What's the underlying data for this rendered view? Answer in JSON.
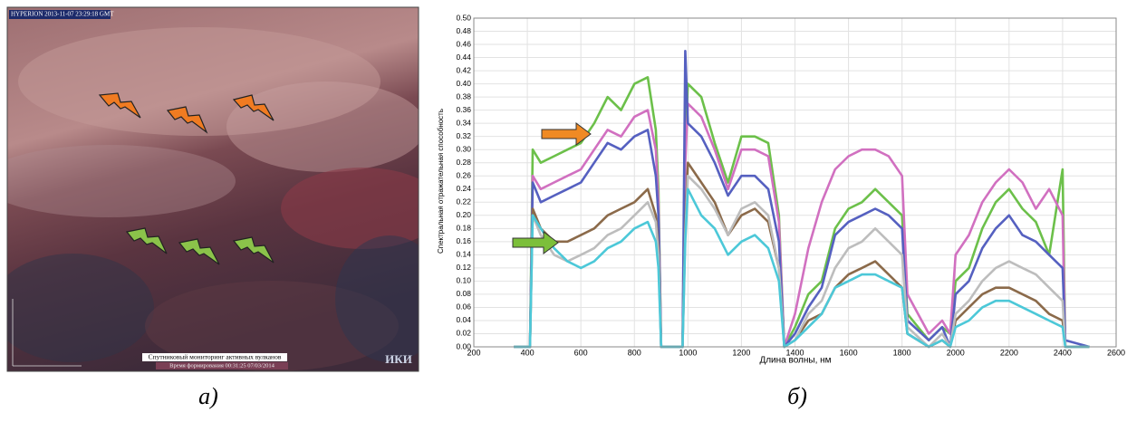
{
  "image_panel": {
    "header": "HYPERION 2013-11-07 23:29:18 GMT",
    "footer_title": "Спутниковый мониторинг активных вулканов",
    "footer_time": "Время формирования 00:31:25 07/03/2014",
    "logo": "ИКИ",
    "caption": "а)"
  },
  "chart_caption": "б)",
  "chart_data": {
    "type": "line",
    "xlabel": "Длина волны, нм",
    "ylabel": "Спектральная отражательная способность",
    "xlim": [
      200,
      2600
    ],
    "xticks": [
      200,
      400,
      600,
      800,
      1000,
      1200,
      1400,
      1600,
      1800,
      2000,
      2200,
      2400,
      2600
    ],
    "ylim": [
      0,
      0.5
    ],
    "yticks": [
      {
        "value": 0,
        "label": "0.00"
      },
      {
        "value": 0.02,
        "label": "0.02"
      },
      {
        "value": 0.04,
        "label": "0.04"
      },
      {
        "value": 0.06,
        "label": "0.06"
      },
      {
        "value": 0.08,
        "label": "0.08"
      },
      {
        "value": 0.1,
        "label": "0.10"
      },
      {
        "value": 0.12,
        "label": "0.12"
      },
      {
        "value": 0.14,
        "label": "0.14"
      },
      {
        "value": 0.16,
        "label": "0.16"
      },
      {
        "value": 0.18,
        "label": "0.18"
      },
      {
        "value": 0.2,
        "label": "0.20"
      },
      {
        "value": 0.22,
        "label": "0.22"
      },
      {
        "value": 0.24,
        "label": "0.24"
      },
      {
        "value": 0.26,
        "label": "0.26"
      },
      {
        "value": 0.28,
        "label": "0.28"
      },
      {
        "value": 0.3,
        "label": "0.30"
      },
      {
        "value": 0.32,
        "label": "0.32"
      },
      {
        "value": 0.34,
        "label": "0.34"
      },
      {
        "value": 0.36,
        "label": "0.36"
      },
      {
        "value": 0.38,
        "label": "0.38"
      },
      {
        "value": 0.4,
        "label": "0.40"
      },
      {
        "value": 0.42,
        "label": "0.42"
      },
      {
        "value": 0.44,
        "label": "0.44"
      },
      {
        "value": 0.46,
        "label": "0.46"
      },
      {
        "value": 0.48,
        "label": "0.48"
      },
      {
        "value": 0.5,
        "label": "0.50"
      }
    ],
    "grid": true,
    "x": [
      350,
      410,
      420,
      450,
      500,
      550,
      600,
      650,
      700,
      750,
      800,
      850,
      880,
      890,
      900,
      980,
      990,
      1000,
      1050,
      1100,
      1150,
      1200,
      1250,
      1300,
      1340,
      1360,
      1400,
      1450,
      1500,
      1550,
      1600,
      1650,
      1700,
      1750,
      1800,
      1820,
      1900,
      1950,
      1980,
      2000,
      2050,
      2100,
      2150,
      2200,
      2250,
      2300,
      2350,
      2400,
      2410,
      2500
    ],
    "series": [
      {
        "color": "#6cc04a",
        "values": [
          0,
          0,
          0.3,
          0.28,
          0.29,
          0.3,
          0.31,
          0.34,
          0.38,
          0.36,
          0.4,
          0.41,
          0.33,
          0.24,
          0,
          0,
          0.3,
          0.4,
          0.38,
          0.31,
          0.25,
          0.32,
          0.32,
          0.31,
          0.2,
          0,
          0.03,
          0.08,
          0.1,
          0.18,
          0.21,
          0.22,
          0.24,
          0.22,
          0.2,
          0.05,
          0.01,
          0.03,
          0.02,
          0.1,
          0.12,
          0.18,
          0.22,
          0.24,
          0.21,
          0.19,
          0.14,
          0.27,
          0,
          0
        ]
      },
      {
        "color": "#d170c0",
        "values": [
          0,
          0,
          0.26,
          0.24,
          0.25,
          0.26,
          0.27,
          0.3,
          0.33,
          0.32,
          0.35,
          0.36,
          0.3,
          0.22,
          0,
          0,
          0.28,
          0.37,
          0.35,
          0.3,
          0.24,
          0.3,
          0.3,
          0.29,
          0.19,
          0,
          0.05,
          0.15,
          0.22,
          0.27,
          0.29,
          0.3,
          0.3,
          0.29,
          0.26,
          0.08,
          0.02,
          0.04,
          0.02,
          0.14,
          0.17,
          0.22,
          0.25,
          0.27,
          0.25,
          0.21,
          0.24,
          0.2,
          0,
          0
        ]
      },
      {
        "color": "#5560c0",
        "values": [
          0,
          0,
          0.25,
          0.22,
          0.23,
          0.24,
          0.25,
          0.28,
          0.31,
          0.3,
          0.32,
          0.33,
          0.26,
          0.2,
          0,
          0,
          0.45,
          0.34,
          0.32,
          0.28,
          0.23,
          0.26,
          0.26,
          0.24,
          0.16,
          0,
          0.02,
          0.06,
          0.09,
          0.17,
          0.19,
          0.2,
          0.21,
          0.2,
          0.18,
          0.04,
          0.01,
          0.03,
          0,
          0.08,
          0.1,
          0.15,
          0.18,
          0.2,
          0.17,
          0.16,
          0.14,
          0.12,
          0.01,
          0
        ]
      },
      {
        "color": "#8b6a4a",
        "values": [
          0,
          0,
          0.21,
          0.18,
          0.16,
          0.16,
          0.17,
          0.18,
          0.2,
          0.21,
          0.22,
          0.24,
          0.2,
          0.15,
          0,
          0,
          0.18,
          0.28,
          0.25,
          0.22,
          0.17,
          0.2,
          0.21,
          0.19,
          0.12,
          0,
          0.01,
          0.04,
          0.05,
          0.09,
          0.11,
          0.12,
          0.13,
          0.11,
          0.09,
          0.02,
          0,
          0.01,
          0,
          0.04,
          0.06,
          0.08,
          0.09,
          0.09,
          0.08,
          0.07,
          0.05,
          0.04,
          0,
          0
        ]
      },
      {
        "color": "#bdbdbd",
        "values": [
          0,
          0,
          0.2,
          0.17,
          0.14,
          0.13,
          0.14,
          0.15,
          0.17,
          0.18,
          0.2,
          0.22,
          0.19,
          0.14,
          0,
          0,
          0.17,
          0.26,
          0.24,
          0.21,
          0.17,
          0.21,
          0.22,
          0.2,
          0.12,
          0,
          0.01,
          0.05,
          0.07,
          0.12,
          0.15,
          0.16,
          0.18,
          0.16,
          0.14,
          0.03,
          0,
          0.02,
          0,
          0.05,
          0.07,
          0.1,
          0.12,
          0.13,
          0.12,
          0.11,
          0.09,
          0.07,
          0,
          0
        ]
      },
      {
        "color": "#4cc8d8",
        "values": [
          0,
          0,
          0.2,
          0.18,
          0.15,
          0.13,
          0.12,
          0.13,
          0.15,
          0.16,
          0.18,
          0.19,
          0.16,
          0.12,
          0,
          0,
          0.16,
          0.24,
          0.2,
          0.18,
          0.14,
          0.16,
          0.17,
          0.15,
          0.1,
          0,
          0.01,
          0.03,
          0.05,
          0.09,
          0.1,
          0.11,
          0.11,
          0.1,
          0.09,
          0.02,
          0,
          0.01,
          0,
          0.03,
          0.04,
          0.06,
          0.07,
          0.07,
          0.06,
          0.05,
          0.04,
          0.03,
          0,
          0
        ]
      }
    ]
  }
}
